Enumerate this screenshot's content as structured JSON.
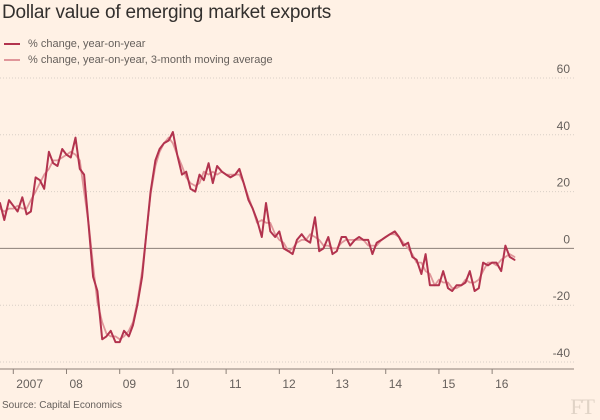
{
  "colors": {
    "background": "#fff1e5",
    "series_main": "#b2334e",
    "series_ma": "#e0969a",
    "grid": "#d9cfc6",
    "zero_line": "#8c8078",
    "text": "#66605c"
  },
  "chart_data": {
    "type": "line",
    "title": "Dollar value of emerging market exports",
    "source": "Source: Capital Economics",
    "brand": "FT",
    "xlabel": "",
    "ylabel": "",
    "ylim": [
      -40,
      60
    ],
    "yticks": [
      60,
      40,
      20,
      0,
      -20,
      -40
    ],
    "grid": true,
    "legend_position": "top-left",
    "x_ticks": [
      {
        "label": "2007",
        "x": 2007.0
      },
      {
        "label": "08",
        "x": 2008.0
      },
      {
        "label": "09",
        "x": 2009.0
      },
      {
        "label": "10",
        "x": 2010.0
      },
      {
        "label": "11",
        "x": 2011.0
      },
      {
        "label": "12",
        "x": 2012.0
      },
      {
        "label": "13",
        "x": 2013.0
      },
      {
        "label": "14",
        "x": 2014.0
      },
      {
        "label": "15",
        "x": 2015.0
      },
      {
        "label": "16",
        "x": 2016.0
      }
    ],
    "xlim": [
      2006.75,
      2017.05
    ],
    "series": [
      {
        "name": "% change, year-on-year",
        "color": "#b2334e",
        "points": [
          [
            2006.75,
            16
          ],
          [
            2006.83,
            10
          ],
          [
            2006.92,
            17
          ],
          [
            2007.0,
            15
          ],
          [
            2007.08,
            13
          ],
          [
            2007.17,
            18
          ],
          [
            2007.25,
            12
          ],
          [
            2007.33,
            13
          ],
          [
            2007.42,
            25
          ],
          [
            2007.5,
            24
          ],
          [
            2007.58,
            21
          ],
          [
            2007.67,
            34
          ],
          [
            2007.75,
            30
          ],
          [
            2007.83,
            29
          ],
          [
            2007.92,
            35
          ],
          [
            2008.0,
            33
          ],
          [
            2008.08,
            32
          ],
          [
            2008.17,
            39
          ],
          [
            2008.25,
            28
          ],
          [
            2008.33,
            26
          ],
          [
            2008.42,
            7
          ],
          [
            2008.5,
            -10
          ],
          [
            2008.58,
            -15
          ],
          [
            2008.67,
            -32
          ],
          [
            2008.75,
            -31
          ],
          [
            2008.83,
            -29
          ],
          [
            2008.92,
            -33
          ],
          [
            2009.0,
            -33
          ],
          [
            2009.08,
            -29
          ],
          [
            2009.17,
            -31
          ],
          [
            2009.25,
            -27
          ],
          [
            2009.33,
            -20
          ],
          [
            2009.42,
            -10
          ],
          [
            2009.5,
            5
          ],
          [
            2009.58,
            20
          ],
          [
            2009.67,
            31
          ],
          [
            2009.75,
            35
          ],
          [
            2009.83,
            37
          ],
          [
            2009.92,
            38
          ],
          [
            2010.0,
            41
          ],
          [
            2010.08,
            33
          ],
          [
            2010.17,
            26
          ],
          [
            2010.25,
            27
          ],
          [
            2010.33,
            21
          ],
          [
            2010.42,
            20
          ],
          [
            2010.5,
            26
          ],
          [
            2010.58,
            24
          ],
          [
            2010.67,
            30
          ],
          [
            2010.75,
            23
          ],
          [
            2010.83,
            29
          ],
          [
            2010.92,
            27
          ],
          [
            2011.0,
            26
          ],
          [
            2011.08,
            25
          ],
          [
            2011.17,
            26
          ],
          [
            2011.25,
            28
          ],
          [
            2011.33,
            23
          ],
          [
            2011.42,
            17
          ],
          [
            2011.5,
            14
          ],
          [
            2011.58,
            10
          ],
          [
            2011.67,
            4
          ],
          [
            2011.75,
            16
          ],
          [
            2011.83,
            6
          ],
          [
            2011.92,
            4
          ],
          [
            2012.0,
            6
          ],
          [
            2012.08,
            0
          ],
          [
            2012.17,
            -1
          ],
          [
            2012.25,
            -2
          ],
          [
            2012.33,
            3
          ],
          [
            2012.42,
            5
          ],
          [
            2012.5,
            3
          ],
          [
            2012.58,
            2
          ],
          [
            2012.67,
            11
          ],
          [
            2012.75,
            -1
          ],
          [
            2012.83,
            0
          ],
          [
            2012.92,
            4
          ],
          [
            2013.0,
            -2
          ],
          [
            2013.08,
            -1
          ],
          [
            2013.17,
            4
          ],
          [
            2013.25,
            4
          ],
          [
            2013.33,
            1
          ],
          [
            2013.42,
            3
          ],
          [
            2013.5,
            4
          ],
          [
            2013.58,
            3
          ],
          [
            2013.67,
            3
          ],
          [
            2013.75,
            -2
          ],
          [
            2013.83,
            2
          ],
          [
            2013.92,
            3
          ],
          [
            2014.0,
            4
          ],
          [
            2014.08,
            5
          ],
          [
            2014.17,
            6
          ],
          [
            2014.25,
            4
          ],
          [
            2014.33,
            1
          ],
          [
            2014.42,
            2
          ],
          [
            2014.5,
            -3
          ],
          [
            2014.58,
            -4
          ],
          [
            2014.67,
            -9
          ],
          [
            2014.75,
            -2
          ],
          [
            2014.83,
            -13
          ],
          [
            2014.92,
            -13
          ],
          [
            2015.0,
            -13
          ],
          [
            2015.08,
            -8
          ],
          [
            2015.17,
            -14
          ],
          [
            2015.25,
            -15
          ],
          [
            2015.33,
            -13
          ],
          [
            2015.42,
            -13
          ],
          [
            2015.5,
            -12
          ],
          [
            2015.58,
            -8
          ],
          [
            2015.67,
            -15
          ],
          [
            2015.75,
            -14
          ],
          [
            2015.83,
            -5
          ],
          [
            2015.92,
            -6
          ],
          [
            2016.0,
            -5
          ],
          [
            2016.08,
            -5
          ],
          [
            2016.17,
            -8
          ],
          [
            2016.25,
            1
          ],
          [
            2016.33,
            -3
          ],
          [
            2016.42,
            -4
          ]
        ]
      },
      {
        "name": "% change, year-on-year, 3-month moving average",
        "color": "#e0969a",
        "points": [
          [
            2006.75,
            14
          ],
          [
            2006.83,
            13
          ],
          [
            2006.92,
            14
          ],
          [
            2007.0,
            14
          ],
          [
            2007.08,
            15
          ],
          [
            2007.17,
            14
          ],
          [
            2007.25,
            14
          ],
          [
            2007.33,
            17
          ],
          [
            2007.42,
            20
          ],
          [
            2007.5,
            23
          ],
          [
            2007.58,
            26
          ],
          [
            2007.67,
            28
          ],
          [
            2007.75,
            31
          ],
          [
            2007.83,
            31
          ],
          [
            2007.92,
            32
          ],
          [
            2008.0,
            33
          ],
          [
            2008.08,
            34
          ],
          [
            2008.17,
            33
          ],
          [
            2008.25,
            31
          ],
          [
            2008.33,
            20
          ],
          [
            2008.42,
            8
          ],
          [
            2008.5,
            -6
          ],
          [
            2008.58,
            -19
          ],
          [
            2008.67,
            -26
          ],
          [
            2008.75,
            -30
          ],
          [
            2008.83,
            -31
          ],
          [
            2008.92,
            -31
          ],
          [
            2009.0,
            -32
          ],
          [
            2009.08,
            -31
          ],
          [
            2009.17,
            -29
          ],
          [
            2009.25,
            -26
          ],
          [
            2009.33,
            -19
          ],
          [
            2009.42,
            -8
          ],
          [
            2009.5,
            5
          ],
          [
            2009.58,
            19
          ],
          [
            2009.67,
            29
          ],
          [
            2009.75,
            34
          ],
          [
            2009.83,
            37
          ],
          [
            2009.92,
            39
          ],
          [
            2010.0,
            37
          ],
          [
            2010.08,
            33
          ],
          [
            2010.17,
            29
          ],
          [
            2010.25,
            25
          ],
          [
            2010.33,
            23
          ],
          [
            2010.42,
            22
          ],
          [
            2010.5,
            23
          ],
          [
            2010.58,
            27
          ],
          [
            2010.67,
            26
          ],
          [
            2010.75,
            27
          ],
          [
            2010.83,
            26
          ],
          [
            2010.92,
            27
          ],
          [
            2011.0,
            26
          ],
          [
            2011.08,
            26
          ],
          [
            2011.17,
            26
          ],
          [
            2011.25,
            26
          ],
          [
            2011.33,
            23
          ],
          [
            2011.42,
            18
          ],
          [
            2011.5,
            14
          ],
          [
            2011.58,
            9
          ],
          [
            2011.67,
            10
          ],
          [
            2011.75,
            9
          ],
          [
            2011.83,
            9
          ],
          [
            2011.92,
            5
          ],
          [
            2012.0,
            3
          ],
          [
            2012.08,
            2
          ],
          [
            2012.17,
            -1
          ],
          [
            2012.25,
            0
          ],
          [
            2012.33,
            2
          ],
          [
            2012.42,
            3
          ],
          [
            2012.5,
            3
          ],
          [
            2012.58,
            5
          ],
          [
            2012.67,
            4
          ],
          [
            2012.75,
            3
          ],
          [
            2012.83,
            1
          ],
          [
            2012.92,
            1
          ],
          [
            2013.0,
            0
          ],
          [
            2013.08,
            0
          ],
          [
            2013.17,
            2
          ],
          [
            2013.25,
            3
          ],
          [
            2013.33,
            3
          ],
          [
            2013.42,
            3
          ],
          [
            2013.5,
            3
          ],
          [
            2013.58,
            3
          ],
          [
            2013.67,
            1
          ],
          [
            2013.75,
            1
          ],
          [
            2013.83,
            1
          ],
          [
            2013.92,
            3
          ],
          [
            2014.0,
            4
          ],
          [
            2014.08,
            5
          ],
          [
            2014.17,
            5
          ],
          [
            2014.25,
            4
          ],
          [
            2014.33,
            2
          ],
          [
            2014.42,
            0
          ],
          [
            2014.5,
            -2
          ],
          [
            2014.58,
            -5
          ],
          [
            2014.67,
            -5
          ],
          [
            2014.75,
            -8
          ],
          [
            2014.83,
            -9
          ],
          [
            2014.92,
            -13
          ],
          [
            2015.0,
            -11
          ],
          [
            2015.08,
            -12
          ],
          [
            2015.17,
            -12
          ],
          [
            2015.25,
            -14
          ],
          [
            2015.33,
            -14
          ],
          [
            2015.42,
            -13
          ],
          [
            2015.5,
            -11
          ],
          [
            2015.58,
            -12
          ],
          [
            2015.67,
            -12
          ],
          [
            2015.75,
            -11
          ],
          [
            2015.83,
            -8
          ],
          [
            2015.92,
            -5
          ],
          [
            2016.0,
            -5
          ],
          [
            2016.08,
            -6
          ],
          [
            2016.17,
            -4
          ],
          [
            2016.25,
            -3
          ],
          [
            2016.33,
            -2
          ],
          [
            2016.42,
            -3
          ]
        ]
      }
    ]
  }
}
